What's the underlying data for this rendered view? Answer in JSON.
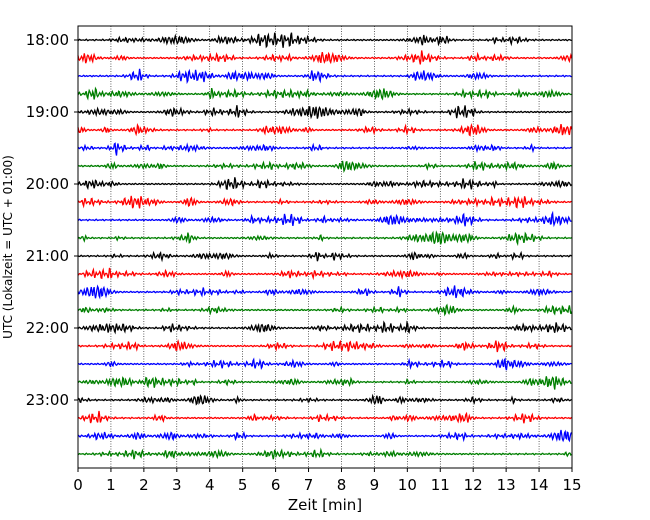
{
  "chart_data": {
    "type": "line",
    "title": "",
    "xlabel": "Zeit  [min]",
    "ylabel": "UTC (Lokalzeit = UTC + 01:00)",
    "xlim": [
      0,
      15
    ],
    "x_ticks": [
      "0",
      "1",
      "2",
      "3",
      "4",
      "5",
      "6",
      "7",
      "8",
      "9",
      "10",
      "11",
      "12",
      "13",
      "14",
      "15"
    ],
    "y_tick_labels": [
      "18:00",
      "19:00",
      "20:00",
      "21:00",
      "22:00",
      "23:00"
    ],
    "grid": "vertical-dotted",
    "legend": "none",
    "trace_interval_min": 15,
    "trace_count": 24,
    "trace_colors": [
      "#000000",
      "#ff0000",
      "#0000ff",
      "#007f00"
    ]
  }
}
